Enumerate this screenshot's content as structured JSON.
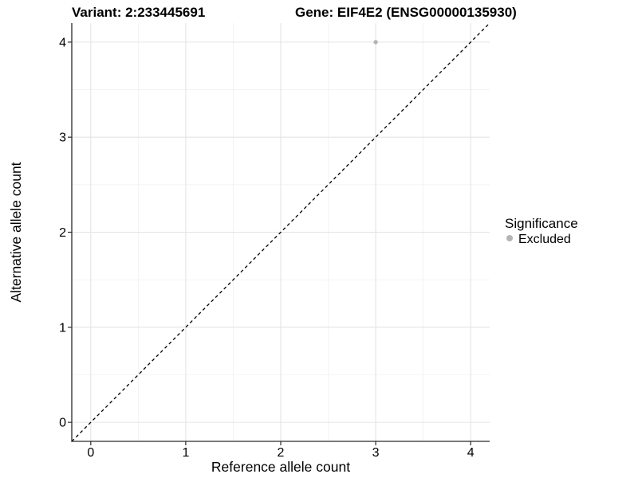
{
  "titles": {
    "left": "Variant: 2:233445691",
    "right": "Gene: EIF4E2 (ENSG00000135930)"
  },
  "colors": {
    "background": "#ffffff",
    "axis": "#2a2a2a",
    "grid_major": "#e4e4e4",
    "grid_minor": "#f2f2f2",
    "reference_line": "#000000",
    "point_excluded": "#b4b4b4",
    "text": "#000000"
  },
  "chart_data": {
    "type": "scatter",
    "title_left": "Variant: 2:233445691",
    "title_right": "Gene: EIF4E2 (ENSG00000135930)",
    "xlabel": "Reference allele count",
    "ylabel": "Alternative allele count",
    "xlim": [
      -0.2,
      4.2
    ],
    "ylim": [
      -0.2,
      4.2
    ],
    "x_ticks": [
      0,
      1,
      2,
      3,
      4
    ],
    "y_ticks": [
      0,
      1,
      2,
      3,
      4
    ],
    "x_minor_ticks": [
      0.5,
      1.5,
      2.5,
      3.5
    ],
    "y_minor_ticks": [
      0.5,
      1.5,
      2.5,
      3.5
    ],
    "grid": true,
    "points": [
      {
        "x": 3,
        "y": 4,
        "series": "Excluded"
      }
    ],
    "reference_line": {
      "kind": "abline",
      "slope": 1,
      "intercept": 0,
      "style": "dashed"
    },
    "legend": {
      "title": "Significance",
      "position": "right",
      "entries": [
        {
          "label": "Excluded",
          "marker": "circle",
          "color": "#b4b4b4"
        }
      ]
    }
  }
}
